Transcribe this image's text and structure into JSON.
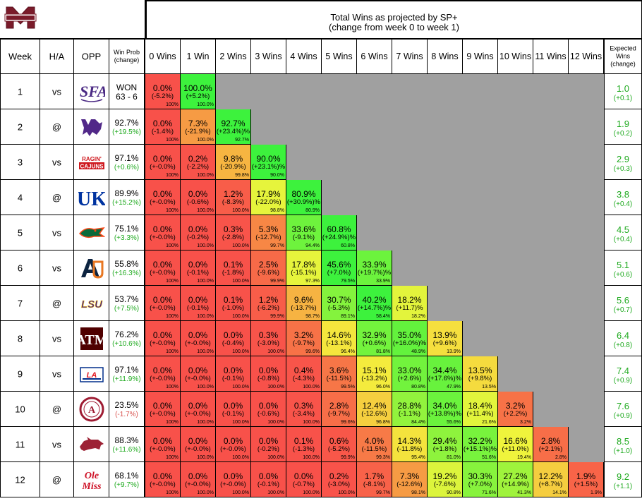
{
  "header": {
    "title_line1": "Total Wins as projected by SP+",
    "title_line2": "(change from week 0 to week 1)"
  },
  "columns": {
    "week": "Week",
    "ha": "H/A",
    "opp": "OPP",
    "winprob_line1": "Win Prob",
    "winprob_line2": "(change)",
    "wins": [
      "0 Wins",
      "1 Win",
      "2 Wins",
      "3 Wins",
      "4 Wins",
      "5 Wins",
      "6 Wins",
      "7 Wins",
      "8 Wins",
      "9 Wins",
      "10 Wins",
      "11 Wins",
      "12 Wins"
    ],
    "expected_line1": "Expected",
    "expected_line2": "Wins",
    "expected_line3": "(change)"
  },
  "colors": {
    "red": "#f8514a",
    "green": "#3df23d",
    "yellow": "#f4f43c",
    "gray": "#a0a0a0",
    "positive_text": "#1faa1f",
    "negative_text": "#d9534f"
  },
  "chart_data": {
    "type": "table",
    "title": "Total Wins as projected by SP+",
    "subtitle": "(change from week 0 to week 1)",
    "rows": [
      {
        "week": "1",
        "ha": "vs",
        "opp": "Stephen F. Austin",
        "opp_logo": "sfa-logo",
        "winprob": "WON",
        "winprob_change": "63 - 6",
        "winprob_sign": "none",
        "expected": "1.0",
        "expected_change": "(+0.1)",
        "cells": [
          {
            "v": "0.0%",
            "c": "(-5.2%)",
            "cum": "100%"
          },
          {
            "v": "100.0%",
            "c": "(+5.2%)",
            "cum": "100.0%"
          }
        ]
      },
      {
        "week": "2",
        "ha": "@",
        "opp": "Kansas State",
        "opp_logo": "k-state-logo",
        "winprob": "92.7%",
        "winprob_change": "(+19.5%)",
        "winprob_sign": "pos",
        "expected": "1.9",
        "expected_change": "(+0.2)",
        "cells": [
          {
            "v": "0.0%",
            "c": "(-1.4%)",
            "cum": "100%"
          },
          {
            "v": "7.3%",
            "c": "(-21.9%)",
            "cum": "100.0%"
          },
          {
            "v": "92.7%",
            "c": "(+23.4%)%",
            "cum": "92.7%"
          }
        ]
      },
      {
        "week": "3",
        "ha": "vs",
        "opp": "Louisiana",
        "opp_logo": "ragin-cajuns-logo",
        "winprob": "97.1%",
        "winprob_change": "(+0.6%)",
        "winprob_sign": "pos",
        "expected": "2.9",
        "expected_change": "(+0.3)",
        "cells": [
          {
            "v": "0.0%",
            "c": "(+-0.0%)",
            "cum": "100%"
          },
          {
            "v": "0.2%",
            "c": "(-2.2%)",
            "cum": "100.0%"
          },
          {
            "v": "9.8%",
            "c": "(-20.9%)",
            "cum": "99.8%"
          },
          {
            "v": "90.0%",
            "c": "(+23.1%)%",
            "cum": "90.0%"
          }
        ]
      },
      {
        "week": "4",
        "ha": "@",
        "opp": "Kentucky",
        "opp_logo": "uk-logo",
        "winprob": "89.9%",
        "winprob_change": "(+15.2%)",
        "winprob_sign": "pos",
        "expected": "3.8",
        "expected_change": "(+0.4)",
        "cells": [
          {
            "v": "0.0%",
            "c": "(+-0.0%)",
            "cum": "100%"
          },
          {
            "v": "0.0%",
            "c": "(-0.6%)",
            "cum": "100.0%"
          },
          {
            "v": "1.2%",
            "c": "(-8.3%)",
            "cum": "100.0%"
          },
          {
            "v": "17.9%",
            "c": "(-22.0%)",
            "cum": "98.8%"
          },
          {
            "v": "80.9%",
            "c": "(+30.9%)%",
            "cum": "80.9%"
          }
        ]
      },
      {
        "week": "5",
        "ha": "vs",
        "opp": "Florida",
        "opp_logo": "gator-logo",
        "winprob": "75.1%",
        "winprob_change": "(+3.3%)",
        "winprob_sign": "pos",
        "expected": "4.5",
        "expected_change": "(+0.4)",
        "cells": [
          {
            "v": "0.0%",
            "c": "(+-0.0%)",
            "cum": "100%"
          },
          {
            "v": "0.0%",
            "c": "(-0.2%)",
            "cum": "100.0%"
          },
          {
            "v": "0.3%",
            "c": "(-2.8%)",
            "cum": "100.0%"
          },
          {
            "v": "5.3%",
            "c": "(-12.7%)",
            "cum": "99.7%"
          },
          {
            "v": "33.6%",
            "c": "(-9.1%)",
            "cum": "94.4%"
          },
          {
            "v": "60.8%",
            "c": "(+24.9%)%",
            "cum": "60.8%"
          }
        ]
      },
      {
        "week": "6",
        "ha": "vs",
        "opp": "Auburn",
        "opp_logo": "au-logo",
        "winprob": "55.8%",
        "winprob_change": "(+16.3%)",
        "winprob_sign": "pos",
        "expected": "5.1",
        "expected_change": "(+0.6)",
        "cells": [
          {
            "v": "0.0%",
            "c": "(+-0.0%)",
            "cum": "100%"
          },
          {
            "v": "0.0%",
            "c": "(-0.1%)",
            "cum": "100.0%"
          },
          {
            "v": "0.1%",
            "c": "(-1.8%)",
            "cum": "100.0%"
          },
          {
            "v": "2.5%",
            "c": "(-9.6%)",
            "cum": "99.9%"
          },
          {
            "v": "17.8%",
            "c": "(-15.1%)",
            "cum": "97.3%"
          },
          {
            "v": "45.6%",
            "c": "(+7.0%)",
            "cum": "79.5%"
          },
          {
            "v": "33.9%",
            "c": "(+19.7%)%",
            "cum": "33.9%"
          }
        ]
      },
      {
        "week": "7",
        "ha": "@",
        "opp": "LSU",
        "opp_logo": "lsu-logo",
        "winprob": "53.7%",
        "winprob_change": "(+7.5%)",
        "winprob_sign": "pos",
        "expected": "5.6",
        "expected_change": "(+0.7)",
        "cells": [
          {
            "v": "0.0%",
            "c": "(+-0.0%)",
            "cum": "100%"
          },
          {
            "v": "0.0%",
            "c": "(-0.1%)",
            "cum": "100.0%"
          },
          {
            "v": "0.1%",
            "c": "(-1.0%)",
            "cum": "100.0%"
          },
          {
            "v": "1.2%",
            "c": "(-6.2%)",
            "cum": "99.9%"
          },
          {
            "v": "9.6%",
            "c": "(-13.7%)",
            "cum": "98.7%"
          },
          {
            "v": "30.7%",
            "c": "(-5.3%)",
            "cum": "89.1%"
          },
          {
            "v": "40.2%",
            "c": "(+14.7%)%",
            "cum": "58.4%"
          },
          {
            "v": "18.2%",
            "c": "(+11.7)%",
            "cum": "18.2%"
          }
        ]
      },
      {
        "week": "8",
        "ha": "vs",
        "opp": "Texas A&M",
        "opp_logo": "atm-logo",
        "winprob": "76.2%",
        "winprob_change": "(+10.6%)",
        "winprob_sign": "pos",
        "expected": "6.4",
        "expected_change": "(+0.8)",
        "cells": [
          {
            "v": "0.0%",
            "c": "(+-0.0%)",
            "cum": "100%"
          },
          {
            "v": "0.0%",
            "c": "(+-0.0%)",
            "cum": "100.0%"
          },
          {
            "v": "0.0%",
            "c": "(-0.4%)",
            "cum": "100.0%"
          },
          {
            "v": "0.3%",
            "c": "(-3.0%)",
            "cum": "100.0%"
          },
          {
            "v": "3.2%",
            "c": "(-9.7%)",
            "cum": "99.6%"
          },
          {
            "v": "14.6%",
            "c": "(-13.1%)",
            "cum": "96.4%"
          },
          {
            "v": "32.9%",
            "c": "(+0.6%)",
            "cum": "81.8%"
          },
          {
            "v": "35.0%",
            "c": "(+16.0%)%",
            "cum": "48.9%"
          },
          {
            "v": "13.9%",
            "c": "(+9.6%)",
            "cum": "13.9%"
          }
        ]
      },
      {
        "week": "9",
        "ha": "vs",
        "opp": "Louisiana Tech",
        "opp_logo": "la-tech-logo",
        "winprob": "97.1%",
        "winprob_change": "(+11.9%)",
        "winprob_sign": "pos",
        "expected": "7.4",
        "expected_change": "(+0.9)",
        "cells": [
          {
            "v": "0.0%",
            "c": "(+-0.0%)",
            "cum": "100%"
          },
          {
            "v": "0.0%",
            "c": "(+-0.0%)",
            "cum": "100.0%"
          },
          {
            "v": "0.0%",
            "c": "(-0.1%)",
            "cum": "100.0%"
          },
          {
            "v": "0.0%",
            "c": "(-0.8%)",
            "cum": "100.0%"
          },
          {
            "v": "0.4%",
            "c": "(-4.3%)",
            "cum": "100.0%"
          },
          {
            "v": "3.6%",
            "c": "(-11.5%)",
            "cum": "99.5%"
          },
          {
            "v": "15.1%",
            "c": "(-13.2%)",
            "cum": "96.0%"
          },
          {
            "v": "33.0%",
            "c": "(+2.6%)",
            "cum": "80.8%"
          },
          {
            "v": "34.4%",
            "c": "(+17.6%)%",
            "cum": "47.9%"
          },
          {
            "v": "13.5%",
            "c": "(+9.8%)",
            "cum": "13.5%"
          }
        ]
      },
      {
        "week": "10",
        "ha": "@",
        "opp": "Alabama",
        "opp_logo": "alabama-logo",
        "winprob": "23.5%",
        "winprob_change": "(-1.7%)",
        "winprob_sign": "neg",
        "expected": "7.6",
        "expected_change": "(+0.9)",
        "cells": [
          {
            "v": "0.0%",
            "c": "(+-0.0%)",
            "cum": "100%"
          },
          {
            "v": "0.0%",
            "c": "(+-0.0%)",
            "cum": "100.0%"
          },
          {
            "v": "0.0%",
            "c": "(-0.1%)",
            "cum": "100.0%"
          },
          {
            "v": "0.0%",
            "c": "(-0.6%)",
            "cum": "100.0%"
          },
          {
            "v": "0.3%",
            "c": "(-3.4%)",
            "cum": "100.0%"
          },
          {
            "v": "2.8%",
            "c": "(-9.7%)",
            "cum": "99.6%"
          },
          {
            "v": "12.4%",
            "c": "(-12.6%)",
            "cum": "96.8%"
          },
          {
            "v": "28.8%",
            "c": "(-1.1%)",
            "cum": "84.4%"
          },
          {
            "v": "34.0%",
            "c": "(+13.8%)%",
            "cum": "55.6%"
          },
          {
            "v": "18.4%",
            "c": "(+11.4%)",
            "cum": "21.6%"
          },
          {
            "v": "3.2%",
            "c": "(+2.2%)",
            "cum": "3.2%"
          }
        ]
      },
      {
        "week": "11",
        "ha": "vs",
        "opp": "Arkansas",
        "opp_logo": "razorback-logo",
        "winprob": "88.3%",
        "winprob_change": "(+11.6%)",
        "winprob_sign": "pos",
        "expected": "8.5",
        "expected_change": "(+1.0)",
        "cells": [
          {
            "v": "0.0%",
            "c": "(+-0.0%)",
            "cum": "100%"
          },
          {
            "v": "0.0%",
            "c": "(+-0.0%)",
            "cum": "100.0%"
          },
          {
            "v": "0.0%",
            "c": "(+-0.0%)",
            "cum": "100.0%"
          },
          {
            "v": "0.0%",
            "c": "(-0.2%)",
            "cum": "100.0%"
          },
          {
            "v": "0.1%",
            "c": "(-1.3%)",
            "cum": "100.0%"
          },
          {
            "v": "0.6%",
            "c": "(-5.2%)",
            "cum": "99.9%"
          },
          {
            "v": "4.0%",
            "c": "(-11.5%)",
            "cum": "99.3%"
          },
          {
            "v": "14.3%",
            "c": "(-11.8%)",
            "cum": "95.4%"
          },
          {
            "v": "29.4%",
            "c": "(+1.8%)",
            "cum": "81.0%"
          },
          {
            "v": "32.2%",
            "c": "(+15.1%)%",
            "cum": "51.6%"
          },
          {
            "v": "16.6%",
            "c": "(+11.0%)",
            "cum": "19.4%"
          },
          {
            "v": "2.8%",
            "c": "(+2.1%)",
            "cum": "2.8%"
          }
        ]
      },
      {
        "week": "12",
        "ha": "@",
        "opp": "Ole Miss",
        "opp_logo": "ole-miss-logo",
        "winprob": "68.1%",
        "winprob_change": "(+9.7%)",
        "winprob_sign": "pos",
        "expected": "9.2",
        "expected_change": "(+1.1)",
        "cells": [
          {
            "v": "0.0%",
            "c": "(+-0.0%)",
            "cum": "100%"
          },
          {
            "v": "0.0%",
            "c": "(+-0.0%)",
            "cum": "100.0%"
          },
          {
            "v": "0.0%",
            "c": "(+-0.0%)",
            "cum": "100.0%"
          },
          {
            "v": "0.0%",
            "c": "(-0.1%)",
            "cum": "100.0%"
          },
          {
            "v": "0.0%",
            "c": "(-0.7%)",
            "cum": "100.0%"
          },
          {
            "v": "0.2%",
            "c": "(-3.0%)",
            "cum": "100.0%"
          },
          {
            "v": "1.7%",
            "c": "(-8.1%)",
            "cum": "99.7%"
          },
          {
            "v": "7.3%",
            "c": "(-12.6%)",
            "cum": "98.1%"
          },
          {
            "v": "19.2%",
            "c": "(-7.6%)",
            "cum": "90.8%"
          },
          {
            "v": "30.3%",
            "c": "(+7.0%)",
            "cum": "71.6%"
          },
          {
            "v": "27.2%",
            "c": "(+14.9%)",
            "cum": "41.3%"
          },
          {
            "v": "12.2%",
            "c": "(+8.7%)",
            "cum": "14.1%"
          },
          {
            "v": "1.9%",
            "c": "(+1.5%)",
            "cum": "1.9%"
          }
        ]
      }
    ]
  }
}
